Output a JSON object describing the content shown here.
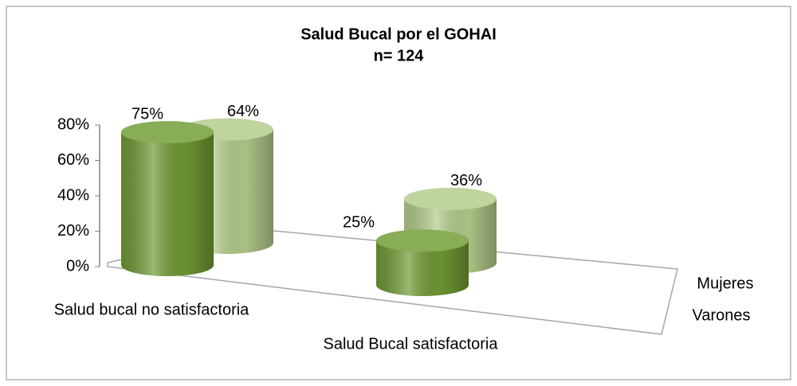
{
  "chart_data": {
    "type": "bar3d",
    "title": "Salud Bucal por el GOHAI",
    "subtitle": "n= 124",
    "categories": [
      "Salud bucal no satisfactoria",
      "Salud Bucal satisfactoria"
    ],
    "series": [
      {
        "name": "Mujeres",
        "color": "#b3cb8a",
        "values": [
          64,
          36
        ],
        "value_labels": [
          "64%",
          "36%"
        ]
      },
      {
        "name": "Varones",
        "color": "#6f9a33",
        "values": [
          75,
          25
        ],
        "value_labels": [
          "75%",
          "25%"
        ]
      }
    ],
    "ylim": [
      0,
      80
    ],
    "yticks": [
      {
        "value": 0,
        "label": "0%"
      },
      {
        "value": 20,
        "label": "20%"
      },
      {
        "value": 40,
        "label": "40%"
      },
      {
        "value": 60,
        "label": "60%"
      },
      {
        "value": 80,
        "label": "80%"
      }
    ]
  }
}
